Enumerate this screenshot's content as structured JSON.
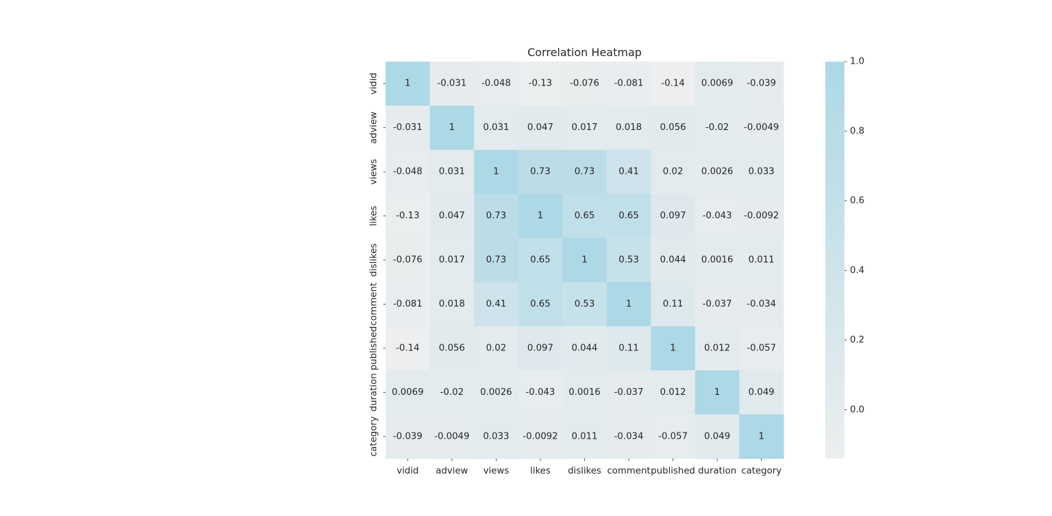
{
  "chart_data": {
    "type": "heatmap",
    "title": "Correlation Heatmap",
    "x_categories": [
      "vidid",
      "adview",
      "views",
      "likes",
      "dislikes",
      "comment",
      "published",
      "duration",
      "category"
    ],
    "y_categories": [
      "vidid",
      "adview",
      "views",
      "likes",
      "dislikes",
      "comment",
      "published",
      "duration",
      "category"
    ],
    "values": [
      [
        1,
        -0.031,
        -0.048,
        -0.13,
        -0.076,
        -0.081,
        -0.14,
        0.0069,
        -0.039
      ],
      [
        -0.031,
        1,
        0.031,
        0.047,
        0.017,
        0.018,
        0.056,
        -0.02,
        -0.0049
      ],
      [
        -0.048,
        0.031,
        1,
        0.73,
        0.73,
        0.41,
        0.02,
        0.0026,
        0.033
      ],
      [
        -0.13,
        0.047,
        0.73,
        1,
        0.65,
        0.65,
        0.097,
        -0.043,
        -0.0092
      ],
      [
        -0.076,
        0.017,
        0.73,
        0.65,
        1,
        0.53,
        0.044,
        0.0016,
        0.011
      ],
      [
        -0.081,
        0.018,
        0.41,
        0.65,
        0.53,
        1,
        0.11,
        -0.037,
        -0.034
      ],
      [
        -0.14,
        0.056,
        0.02,
        0.097,
        0.044,
        0.11,
        1,
        0.012,
        -0.057
      ],
      [
        0.0069,
        -0.02,
        0.0026,
        -0.043,
        0.0016,
        -0.037,
        0.012,
        1,
        0.049
      ],
      [
        -0.039,
        -0.0049,
        0.033,
        -0.0092,
        0.011,
        -0.034,
        -0.057,
        0.049,
        1
      ]
    ],
    "annotations": [
      [
        "1",
        "-0.031",
        "-0.048",
        "-0.13",
        "-0.076",
        "-0.081",
        "-0.14",
        "0.0069",
        "-0.039"
      ],
      [
        "-0.031",
        "1",
        "0.031",
        "0.047",
        "0.017",
        "0.018",
        "0.056",
        "-0.02",
        "-0.0049"
      ],
      [
        "-0.048",
        "0.031",
        "1",
        "0.73",
        "0.73",
        "0.41",
        "0.02",
        "0.0026",
        "0.033"
      ],
      [
        "-0.13",
        "0.047",
        "0.73",
        "1",
        "0.65",
        "0.65",
        "0.097",
        "-0.043",
        "-0.0092"
      ],
      [
        "-0.076",
        "0.017",
        "0.73",
        "0.65",
        "1",
        "0.53",
        "0.044",
        "0.0016",
        "0.011"
      ],
      [
        "-0.081",
        "0.018",
        "0.41",
        "0.65",
        "0.53",
        "1",
        "0.11",
        "-0.037",
        "-0.034"
      ],
      [
        "-0.14",
        "0.056",
        "0.02",
        "0.097",
        "0.044",
        "0.11",
        "1",
        "0.012",
        "-0.057"
      ],
      [
        "0.0069",
        "-0.02",
        "0.0026",
        "-0.043",
        "0.0016",
        "-0.037",
        "0.012",
        "1",
        "0.049"
      ],
      [
        "-0.039",
        "-0.0049",
        "0.033",
        "-0.0092",
        "0.011",
        "-0.034",
        "-0.057",
        "0.049",
        "1"
      ]
    ],
    "colorbar": {
      "range": [
        -0.14,
        1.0
      ],
      "ticks": [
        0.0,
        0.2,
        0.4,
        0.6,
        0.8,
        1.0
      ],
      "tick_labels": [
        "0.0",
        "0.2",
        "0.4",
        "0.6",
        "0.8",
        "1.0"
      ],
      "color_low": "#eceeef",
      "color_high": "#add8e6",
      "placement": "right"
    },
    "grid": false
  }
}
